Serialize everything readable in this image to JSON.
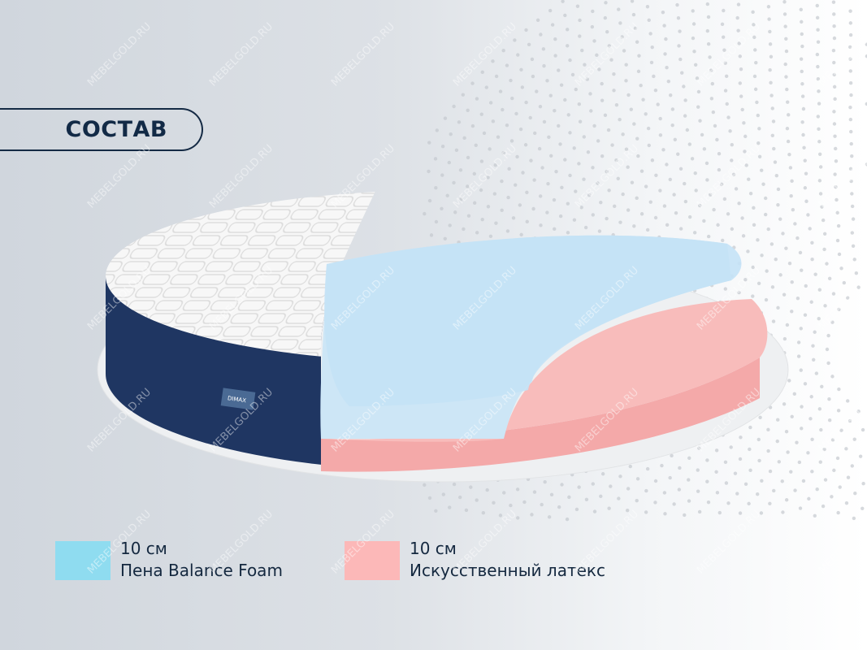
{
  "title": "СОСТАВ",
  "watermark": "MEBELGOLD.RU",
  "brand_tag": "DIMAX",
  "legend": [
    {
      "thickness": "10 см",
      "material": "Пена Balance Foam",
      "color": "#8fdcf0"
    },
    {
      "thickness": "10 см",
      "material": "Искусственный латекс",
      "color": "#fcb8b8"
    }
  ],
  "colors": {
    "navy": "#1e3560",
    "blue_foam": "#c9e4f5",
    "latex": "#f7b7b6",
    "cover": "#f6f6f6"
  }
}
